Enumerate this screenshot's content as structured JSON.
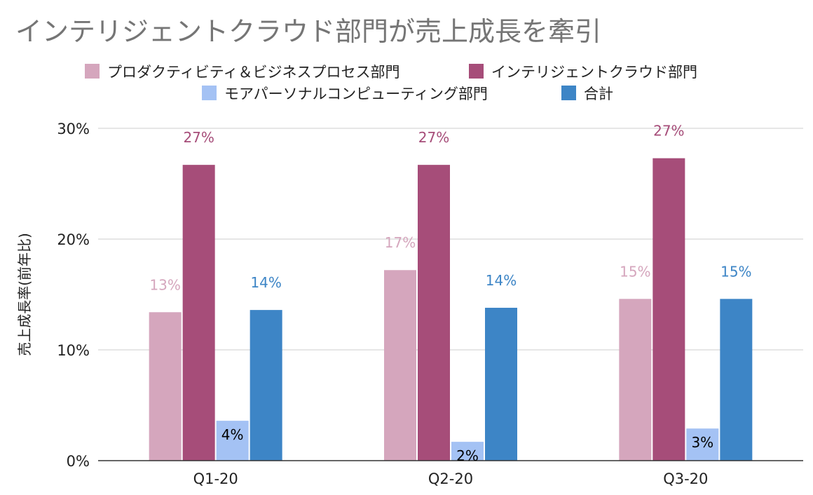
{
  "chart_data": {
    "type": "bar",
    "title": "インテリジェントクラウド部門が売上成長を牽引",
    "ylabel": "売上成長率(前年比)",
    "xlabel": "",
    "categories": [
      "Q1-20",
      "Q2-20",
      "Q3-20"
    ],
    "ylim": [
      0,
      30
    ],
    "yticks": [
      "0%",
      "10%",
      "20%",
      "30%"
    ],
    "grid": true,
    "legend_position": "top",
    "series": [
      {
        "name": "プロダクティビティ＆ビジネスプロセス部門",
        "color": "#d5a6bd",
        "values": [
          13.4,
          17.2,
          14.6
        ],
        "labels": [
          "13%",
          "17%",
          "15%"
        ]
      },
      {
        "name": "インテリジェントクラウド部門",
        "color": "#a64d79",
        "values": [
          26.7,
          26.7,
          27.3
        ],
        "labels": [
          "27%",
          "27%",
          "27%"
        ]
      },
      {
        "name": "モアパーソナルコンピューティング部門",
        "color": "#a4c2f4",
        "values": [
          3.6,
          1.7,
          2.9
        ],
        "labels": [
          "4%",
          "2%",
          "3%"
        ]
      },
      {
        "name": "合計",
        "color": "#3d85c6",
        "values": [
          13.6,
          13.8,
          14.6
        ],
        "labels": [
          "14%",
          "14%",
          "15%"
        ]
      }
    ]
  }
}
